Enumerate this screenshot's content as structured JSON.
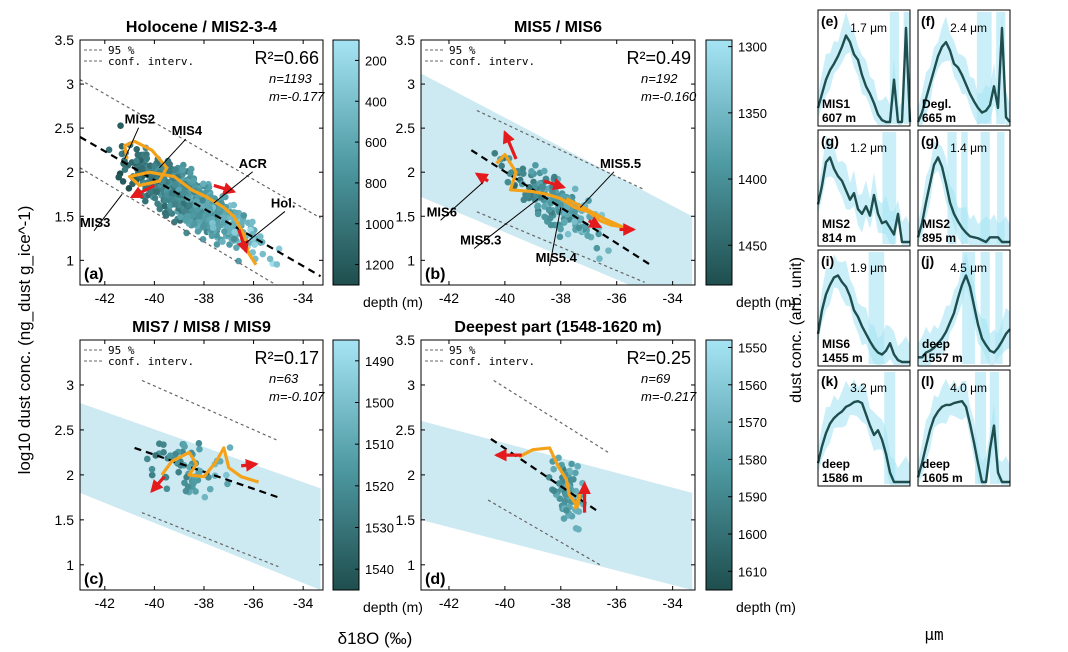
{
  "figure": {
    "ylabel": "log10 dust conc. (ng_dust g_ice^-1)",
    "xlabel": "δ18O (‰)",
    "right_ylabel": "dust conc. (arb. unit)",
    "right_xlabel": "μm",
    "colorbar_label": "depth (m)",
    "legend_line1": "95 %",
    "legend_line2": "conf. interv."
  },
  "chart_data": [
    {
      "type": "scatter",
      "id": "a",
      "panel_label": "(a)",
      "title": "Holocene / MIS2-3-4",
      "xlim": [
        -43,
        -33.2
      ],
      "ylim": [
        0.72,
        3.5
      ],
      "xticks": [
        -42,
        -40,
        -38,
        -36,
        -34
      ],
      "yticks": [
        1,
        1.5,
        2,
        2.5,
        3,
        3.5
      ],
      "r2": "R²=0.66",
      "n": "n=1193",
      "m": "m=-0.177",
      "fit": [
        [
          -43,
          2.4
        ],
        [
          -33.3,
          0.82
        ]
      ],
      "ci_upper": [
        [
          -43,
          3.05
        ],
        [
          -33.3,
          1.48
        ]
      ],
      "ci_lower": [
        [
          -43,
          2.05
        ],
        [
          -33.3,
          0.42
        ]
      ],
      "band": [],
      "colorbar": {
        "range": [
          1300,
          100
        ],
        "ticks": [
          200,
          400,
          600,
          800,
          1000,
          1200
        ]
      },
      "cloud": {
        "center": [
          -38.5,
          1.75
        ],
        "spread_x": 2.4,
        "spread_y": 0.28,
        "count": 700,
        "dep_range": [
          100,
          1300
        ]
      },
      "trajectory": [
        [
          -41.1,
          2.15
        ],
        [
          -41.2,
          2.3
        ],
        [
          -40.8,
          2.35
        ],
        [
          -40.1,
          2.25
        ],
        [
          -39.5,
          2.05
        ],
        [
          -39.8,
          1.9
        ],
        [
          -40.6,
          1.85
        ],
        [
          -41.0,
          1.95
        ],
        [
          -40.2,
          2.0
        ],
        [
          -39.2,
          1.95
        ],
        [
          -38.5,
          1.8
        ],
        [
          -37.9,
          1.72
        ],
        [
          -37.2,
          1.6
        ],
        [
          -36.8,
          1.5
        ],
        [
          -36.4,
          1.3
        ],
        [
          -36.2,
          1.08
        ],
        [
          -35.9,
          0.95
        ]
      ],
      "arrows": [
        [
          -40.0,
          1.85,
          -40.9,
          1.72
        ],
        [
          -37.6,
          1.85,
          -36.8,
          1.78
        ],
        [
          -36.6,
          1.35,
          -36.3,
          1.1
        ]
      ],
      "annotations": [
        {
          "text": "MIS2",
          "x": -41.2,
          "y": 2.55,
          "tx": -41.2,
          "ty": 2.15
        },
        {
          "text": "MIS4",
          "x": -39.3,
          "y": 2.42,
          "tx": -39.8,
          "ty": 2.05
        },
        {
          "text": "ACR",
          "x": -36.6,
          "y": 2.05,
          "tx": -37.6,
          "ty": 1.65
        },
        {
          "text": "Hol.",
          "x": -35.3,
          "y": 1.6,
          "tx": -36.3,
          "ty": 1.2
        },
        {
          "text": "MIS3",
          "x": -43.0,
          "y": 1.38,
          "tx": -41.3,
          "ty": 1.75
        }
      ]
    },
    {
      "type": "scatter",
      "id": "b",
      "panel_label": "(b)",
      "title": "MIS5 / MIS6",
      "xlim": [
        -43,
        -33.2
      ],
      "ylim": [
        0.72,
        3.5
      ],
      "xticks": [
        -42,
        -40,
        -38,
        -36,
        -34
      ],
      "yticks": [
        1,
        1.5,
        2,
        2.5,
        3,
        3.5
      ],
      "r2": "R²=0.49",
      "n": "n=192",
      "m": "m=-0.160",
      "fit": [
        [
          -41.2,
          2.25
        ],
        [
          -34.8,
          0.95
        ]
      ],
      "ci_upper": [
        [
          -41.0,
          2.7
        ],
        [
          -35.0,
          1.8
        ]
      ],
      "ci_lower": [
        [
          -41.0,
          1.55
        ],
        [
          -35.0,
          0.75
        ]
      ],
      "band": [
        [
          -43,
          3.12
        ],
        [
          -33.3,
          1.5
        ],
        [
          -33.3,
          0.42
        ],
        [
          -43,
          1.72
        ]
      ],
      "colorbar": {
        "range": [
          1480,
          1295
        ],
        "ticks": [
          1300,
          1350,
          1400,
          1450
        ]
      },
      "cloud": {
        "center": [
          -38.2,
          1.8
        ],
        "spread_x": 1.6,
        "spread_y": 0.25,
        "count": 190,
        "dep_range": [
          1300,
          1480
        ]
      },
      "trajectory": [
        [
          -40.3,
          2.1
        ],
        [
          -40.0,
          2.2
        ],
        [
          -39.6,
          2.0
        ],
        [
          -39.8,
          1.8
        ],
        [
          -39.0,
          1.78
        ],
        [
          -38.5,
          1.75
        ],
        [
          -38.0,
          1.7
        ],
        [
          -37.5,
          1.6
        ],
        [
          -37.0,
          1.55
        ],
        [
          -36.6,
          1.45
        ],
        [
          -36.2,
          1.4
        ],
        [
          -35.8,
          1.38
        ],
        [
          -36.5,
          1.48
        ],
        [
          -37.2,
          1.6
        ],
        [
          -37.8,
          1.7
        ]
      ],
      "arrows": [
        [
          -39.6,
          2.15,
          -40.0,
          2.45
        ],
        [
          -40.6,
          1.9,
          -41.0,
          1.98
        ],
        [
          -38.6,
          1.9,
          -37.9,
          1.83
        ],
        [
          -37.0,
          1.45,
          -36.6,
          1.38
        ],
        [
          -35.9,
          1.35,
          -35.4,
          1.35
        ]
      ],
      "annotations": [
        {
          "text": "MIS5.5",
          "x": -36.6,
          "y": 2.05,
          "tx": -37.3,
          "ty": 1.6
        },
        {
          "text": "MIS6",
          "x": -42.8,
          "y": 1.5,
          "tx": -40.8,
          "ty": 1.88
        },
        {
          "text": "MIS5.3",
          "x": -41.6,
          "y": 1.18,
          "tx": -38.8,
          "ty": 1.7
        },
        {
          "text": "MIS5.4",
          "x": -38.9,
          "y": 0.98,
          "tx": -38.0,
          "ty": 1.6
        }
      ]
    },
    {
      "type": "scatter",
      "id": "c",
      "panel_label": "(c)",
      "title": "MIS7 / MIS8 / MIS9",
      "xlim": [
        -43,
        -33.2
      ],
      "ylim": [
        0.72,
        3.5
      ],
      "xticks": [
        -42,
        -40,
        -38,
        -36,
        -34
      ],
      "yticks": [
        1,
        1.5,
        2,
        2.5,
        3
      ],
      "r2": "R²=0.17",
      "n": "n=63",
      "m": "m=-0.107",
      "fit": [
        [
          -40.8,
          2.3
        ],
        [
          -35.0,
          1.75
        ]
      ],
      "ci_upper": [
        [
          -40.5,
          3.05
        ],
        [
          -35.0,
          2.38
        ]
      ],
      "ci_lower": [
        [
          -40.5,
          1.58
        ],
        [
          -35.0,
          0.98
        ]
      ],
      "band": [
        [
          -43,
          2.8
        ],
        [
          -33.3,
          1.85
        ],
        [
          -33.3,
          0.72
        ],
        [
          -43,
          1.8
        ]
      ],
      "colorbar": {
        "range": [
          1545,
          1485
        ],
        "ticks": [
          1490,
          1500,
          1510,
          1520,
          1530,
          1540
        ]
      },
      "cloud": {
        "center": [
          -38.5,
          2.0
        ],
        "spread_x": 1.5,
        "spread_y": 0.3,
        "count": 63,
        "dep_range": [
          1485,
          1545
        ]
      },
      "trajectory": [
        [
          -39.7,
          2.0
        ],
        [
          -39.3,
          2.15
        ],
        [
          -38.6,
          2.25
        ],
        [
          -38.3,
          2.12
        ],
        [
          -38.6,
          2.0
        ],
        [
          -38.0,
          1.98
        ],
        [
          -37.5,
          2.15
        ],
        [
          -37.2,
          2.3
        ],
        [
          -37.0,
          2.08
        ],
        [
          -36.5,
          1.98
        ],
        [
          -35.8,
          1.92
        ]
      ],
      "arrows": [
        [
          -39.6,
          1.98,
          -40.1,
          1.82
        ],
        [
          -36.5,
          2.1,
          -35.9,
          2.12
        ]
      ],
      "annotations": []
    },
    {
      "type": "scatter",
      "id": "d",
      "panel_label": "(d)",
      "title": "Deepest part (1548-1620 m)",
      "xlim": [
        -43,
        -33.2
      ],
      "ylim": [
        0.72,
        3.5
      ],
      "xticks": [
        -42,
        -40,
        -38,
        -36,
        -34
      ],
      "yticks": [
        1,
        1.5,
        2,
        2.5,
        3,
        3.5
      ],
      "r2": "R²=0.25",
      "n": "n=69",
      "m": "m=-0.217",
      "fit": [
        [
          -40.5,
          2.4
        ],
        [
          -36.7,
          1.6
        ]
      ],
      "ci_upper": [
        [
          -40.4,
          3.05
        ],
        [
          -36.3,
          2.25
        ]
      ],
      "ci_lower": [
        [
          -40.6,
          1.72
        ],
        [
          -36.6,
          1.0
        ]
      ],
      "band": [
        [
          -43,
          2.6
        ],
        [
          -33.3,
          1.8
        ],
        [
          -33.3,
          0.72
        ],
        [
          -43,
          1.5
        ]
      ],
      "colorbar": {
        "range": [
          1615,
          1548
        ],
        "ticks": [
          1550,
          1560,
          1570,
          1580,
          1590,
          1600,
          1610
        ]
      },
      "cloud": {
        "center": [
          -37.8,
          1.95
        ],
        "spread_x": 0.6,
        "spread_y": 0.35,
        "count": 69,
        "dep_range": [
          1548,
          1615
        ]
      },
      "trajectory": [
        [
          -39.5,
          2.2
        ],
        [
          -39.0,
          2.28
        ],
        [
          -38.4,
          2.3
        ],
        [
          -38.1,
          2.1
        ],
        [
          -37.8,
          1.95
        ],
        [
          -37.7,
          1.78
        ],
        [
          -37.4,
          1.65
        ],
        [
          -37.3,
          1.8
        ],
        [
          -37.5,
          1.62
        ]
      ],
      "arrows": [
        [
          -39.4,
          2.22,
          -40.3,
          2.22
        ],
        [
          -37.15,
          1.58,
          -37.15,
          1.9
        ]
      ],
      "annotations": []
    },
    {
      "type": "line",
      "id": "e",
      "panel_label": "(e)",
      "peak": "1.7 μm",
      "inner1": "MIS1",
      "inner2": "607 m",
      "y": [
        0.15,
        0.3,
        0.45,
        0.55,
        0.62,
        0.7,
        0.8,
        0.92,
        0.85,
        0.72,
        0.66,
        0.5,
        0.38,
        0.3,
        0.2,
        0.08,
        0.02,
        0.0,
        0.0,
        0.45,
        0.0,
        0.0,
        1.0,
        0.0
      ],
      "band_bars": [
        [
          0.78,
          0.88
        ],
        [
          0.93,
          1.0
        ]
      ]
    },
    {
      "type": "line",
      "id": "f",
      "panel_label": "(f)",
      "peak": "2.4 μm",
      "inner1": "Degl.",
      "inner2": "665 m",
      "y": [
        0.0,
        0.1,
        0.25,
        0.4,
        0.55,
        0.7,
        0.8,
        0.85,
        0.76,
        0.62,
        0.58,
        0.5,
        0.4,
        0.3,
        0.22,
        0.15,
        0.1,
        0.12,
        0.18,
        0.38,
        0.15,
        1.0,
        0.05,
        0.0
      ],
      "band_bars": [
        [
          0.64,
          0.8
        ],
        [
          0.85,
          0.95
        ]
      ]
    },
    {
      "type": "line",
      "id": "g",
      "panel_label": "(g)",
      "peak": "1.2 μm",
      "inner1": "MIS2",
      "inner2": "814 m",
      "y": [
        0.4,
        0.6,
        0.85,
        0.9,
        0.78,
        0.7,
        0.65,
        0.55,
        0.45,
        0.52,
        0.35,
        0.3,
        0.38,
        0.28,
        0.5,
        0.3,
        0.2,
        0.22,
        0.15,
        0.08,
        0.3,
        0.0,
        0.0,
        0.0
      ],
      "band_bars": [
        [
          0.7,
          0.85
        ]
      ]
    },
    {
      "type": "line",
      "id": "g2",
      "panel_label": "(g)",
      "peak": "1.4 μm",
      "inner1": "MIS2",
      "inner2": "895 m",
      "y": [
        0.05,
        0.2,
        0.42,
        0.62,
        0.82,
        0.9,
        0.8,
        0.62,
        0.42,
        0.3,
        0.22,
        0.15,
        0.1,
        0.06,
        0.05,
        0.04,
        0.02,
        0.0,
        0.05,
        0.05,
        0.05,
        0.0,
        0.0,
        0.0
      ],
      "band_bars": [
        [
          0.32,
          0.42
        ],
        [
          0.47,
          0.54
        ],
        [
          0.68,
          0.78
        ],
        [
          0.86,
          0.94
        ]
      ]
    },
    {
      "type": "line",
      "id": "i",
      "panel_label": "(i)",
      "peak": "1.9 μm",
      "inner1": "MIS6",
      "inner2": "1455 m",
      "y": [
        0.3,
        0.55,
        0.72,
        0.82,
        0.9,
        0.92,
        0.85,
        0.8,
        0.7,
        0.55,
        0.48,
        0.38,
        0.3,
        0.22,
        0.15,
        0.1,
        0.08,
        0.12,
        0.2,
        0.08,
        0.02,
        0.0,
        0.0,
        0.0
      ],
      "band_bars": [
        [
          0.55,
          0.72
        ]
      ]
    },
    {
      "type": "line",
      "id": "j",
      "panel_label": "(j)",
      "peak": "4.5 μm",
      "inner1": "deep",
      "inner2": "1557 m",
      "y": [
        0.05,
        0.05,
        0.1,
        0.12,
        0.15,
        0.2,
        0.25,
        0.32,
        0.42,
        0.52,
        0.68,
        0.82,
        0.92,
        0.8,
        0.6,
        0.4,
        0.25,
        0.18,
        0.12,
        0.1,
        0.15,
        0.22,
        0.3,
        0.35
      ],
      "band_bars": [
        [
          0.48,
          0.62
        ],
        [
          0.68,
          0.78
        ],
        [
          0.84,
          0.92
        ]
      ]
    },
    {
      "type": "line",
      "id": "k",
      "panel_label": "(k)",
      "peak": "3.2 μm",
      "inner1": "deep",
      "inner2": "1586 m",
      "y": [
        0.2,
        0.38,
        0.52,
        0.62,
        0.68,
        0.72,
        0.75,
        0.8,
        0.82,
        0.85,
        0.86,
        0.84,
        0.72,
        0.6,
        0.5,
        0.55,
        0.45,
        0.3,
        0.1,
        0.0,
        0.0,
        0.0,
        0.0,
        0.0
      ],
      "band_bars": [
        [
          0.72,
          0.84
        ]
      ]
    },
    {
      "type": "line",
      "id": "l",
      "panel_label": "(l)",
      "peak": "4.0 μm",
      "inner1": "deep",
      "inner2": "1605 m",
      "y": [
        0.05,
        0.2,
        0.38,
        0.55,
        0.68,
        0.75,
        0.8,
        0.82,
        0.82,
        0.84,
        0.85,
        0.86,
        0.8,
        0.62,
        0.42,
        0.2,
        0.0,
        0.0,
        0.35,
        0.6,
        0.1,
        0.0,
        0.0,
        0.0
      ],
      "band_bars": [
        [
          0.62,
          0.74
        ],
        [
          0.78,
          0.88
        ]
      ]
    }
  ],
  "spectrum_xticks": [
    "1",
    "2",
    "5",
    "10",
    "17"
  ],
  "colors": {
    "orange": "#f5a21b",
    "red": "#e41a1c",
    "band": "#cde9f1",
    "dark_teal": "#1f4e4e",
    "light_teal": "#a6e4f4"
  }
}
